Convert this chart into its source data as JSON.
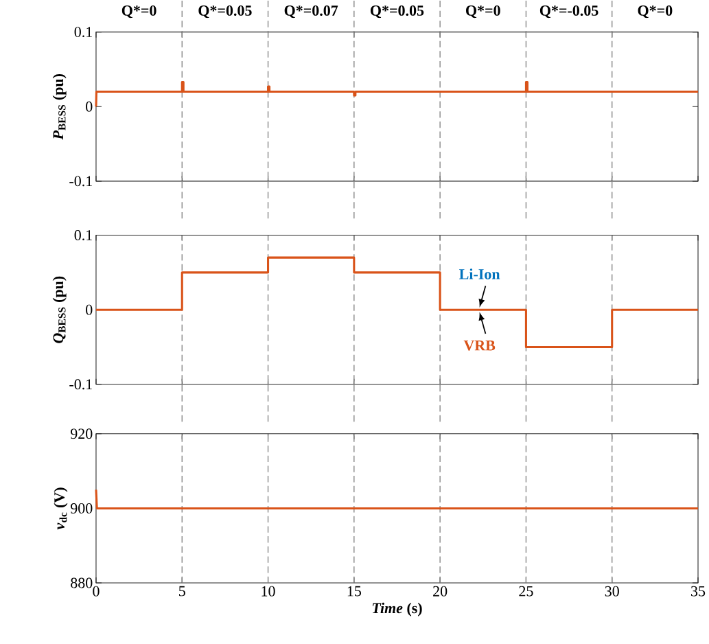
{
  "chart_data": [
    {
      "type": "line",
      "ylabel": "*P*$_{BESS}$ (pu)",
      "xlim": [
        0,
        35
      ],
      "xticks": [
        0,
        5,
        10,
        15,
        20,
        25,
        30,
        35
      ],
      "ylim": [
        -0.1,
        0.1
      ],
      "yticks": [
        -0.1,
        0,
        0.1
      ],
      "tick_labels": "y",
      "line_style": "solid",
      "series": [
        {
          "color": "#d95319",
          "x": [
            0,
            0.02,
            5,
            5,
            5.08,
            5.08,
            10,
            10,
            10.08,
            10.08,
            15,
            15,
            15.08,
            15.08,
            25,
            25,
            25.08,
            25.08,
            35
          ],
          "values": [
            0,
            0.02,
            0.02,
            0.033,
            0.033,
            0.02,
            0.02,
            0.027,
            0.027,
            0.02,
            0.02,
            0.015,
            0.015,
            0.02,
            0.02,
            0.033,
            0.033,
            0.02,
            0.02
          ]
        }
      ],
      "ref_lines": [
        {
          "axis": "x",
          "value": 5,
          "color": "#808080",
          "line_style": "dashed"
        },
        {
          "axis": "x",
          "value": 10,
          "color": "#808080",
          "line_style": "dashed"
        },
        {
          "axis": "x",
          "value": 15,
          "color": "#808080",
          "line_style": "dashed"
        },
        {
          "axis": "x",
          "value": 20,
          "color": "#808080",
          "line_style": "dashed"
        },
        {
          "axis": "x",
          "value": 25,
          "color": "#808080",
          "line_style": "dashed"
        },
        {
          "axis": "x",
          "value": 30,
          "color": "#808080",
          "line_style": "dashed"
        }
      ],
      "annotations": [
        "Q*=0",
        "Q*=0.05",
        "Q*=0.07",
        "Q*=0.05",
        "Q*=0",
        "Q*=-0.05",
        "Q*=0"
      ]
    },
    {
      "type": "line",
      "ylabel": "*Q*$_{BESS}$ (pu)",
      "xlim": [
        0,
        35
      ],
      "xticks": [
        0,
        5,
        10,
        15,
        20,
        25,
        30,
        35
      ],
      "ylim": [
        -0.1,
        0.1
      ],
      "yticks": [
        -0.1,
        0,
        0.1
      ],
      "tick_labels": "y",
      "line_style": "solid",
      "series": [
        {
          "name": "Li-Ion",
          "color": "#0072bd",
          "values": [
            null,
            null,
            null,
            null,
            null,
            null,
            null,
            null,
            null,
            null,
            null,
            null,
            null,
            null
          ]
        },
        {
          "name": "VRB",
          "color": "#d95319",
          "x": [
            0,
            5,
            5,
            10,
            10,
            15,
            15,
            20,
            20,
            25,
            25,
            30,
            30,
            35
          ],
          "values": [
            0,
            0,
            0.05,
            0.05,
            0.07,
            0.07,
            0.05,
            0.05,
            0,
            0,
            -0.05,
            -0.05,
            0,
            0
          ]
        }
      ],
      "ref_lines": [
        {
          "axis": "x",
          "value": 5,
          "color": "#808080",
          "line_style": "dashed"
        },
        {
          "axis": "x",
          "value": 10,
          "color": "#808080",
          "line_style": "dashed"
        },
        {
          "axis": "x",
          "value": 15,
          "color": "#808080",
          "line_style": "dashed"
        },
        {
          "axis": "x",
          "value": 20,
          "color": "#808080",
          "line_style": "dashed"
        },
        {
          "axis": "x",
          "value": 25,
          "color": "#808080",
          "line_style": "dashed"
        },
        {
          "axis": "x",
          "value": 30,
          "color": "#808080",
          "line_style": "dashed"
        }
      ]
    },
    {
      "type": "line",
      "ylabel": "*v*$_{dc}$ (V)",
      "xlabel": "*Time* (s)",
      "xlim": [
        0,
        35
      ],
      "xticks": [
        0,
        5,
        10,
        15,
        20,
        25,
        30,
        35
      ],
      "ylim": [
        880,
        920
      ],
      "yticks": [
        880,
        900,
        920
      ],
      "line_style": "solid",
      "series": [
        {
          "color": "#d95319",
          "x": [
            0,
            0.05,
            35
          ],
          "values": [
            905,
            900,
            900
          ]
        }
      ],
      "ref_lines": [
        {
          "axis": "x",
          "value": 5,
          "color": "#808080",
          "line_style": "dashed"
        },
        {
          "axis": "x",
          "value": 10,
          "color": "#808080",
          "line_style": "dashed"
        },
        {
          "axis": "x",
          "value": 15,
          "color": "#808080",
          "line_style": "dashed"
        },
        {
          "axis": "x",
          "value": 20,
          "color": "#808080",
          "line_style": "dashed"
        },
        {
          "axis": "x",
          "value": 25,
          "color": "#808080",
          "line_style": "dashed"
        },
        {
          "axis": "x",
          "value": 30,
          "color": "#808080",
          "line_style": "dashed"
        }
      ]
    }
  ]
}
